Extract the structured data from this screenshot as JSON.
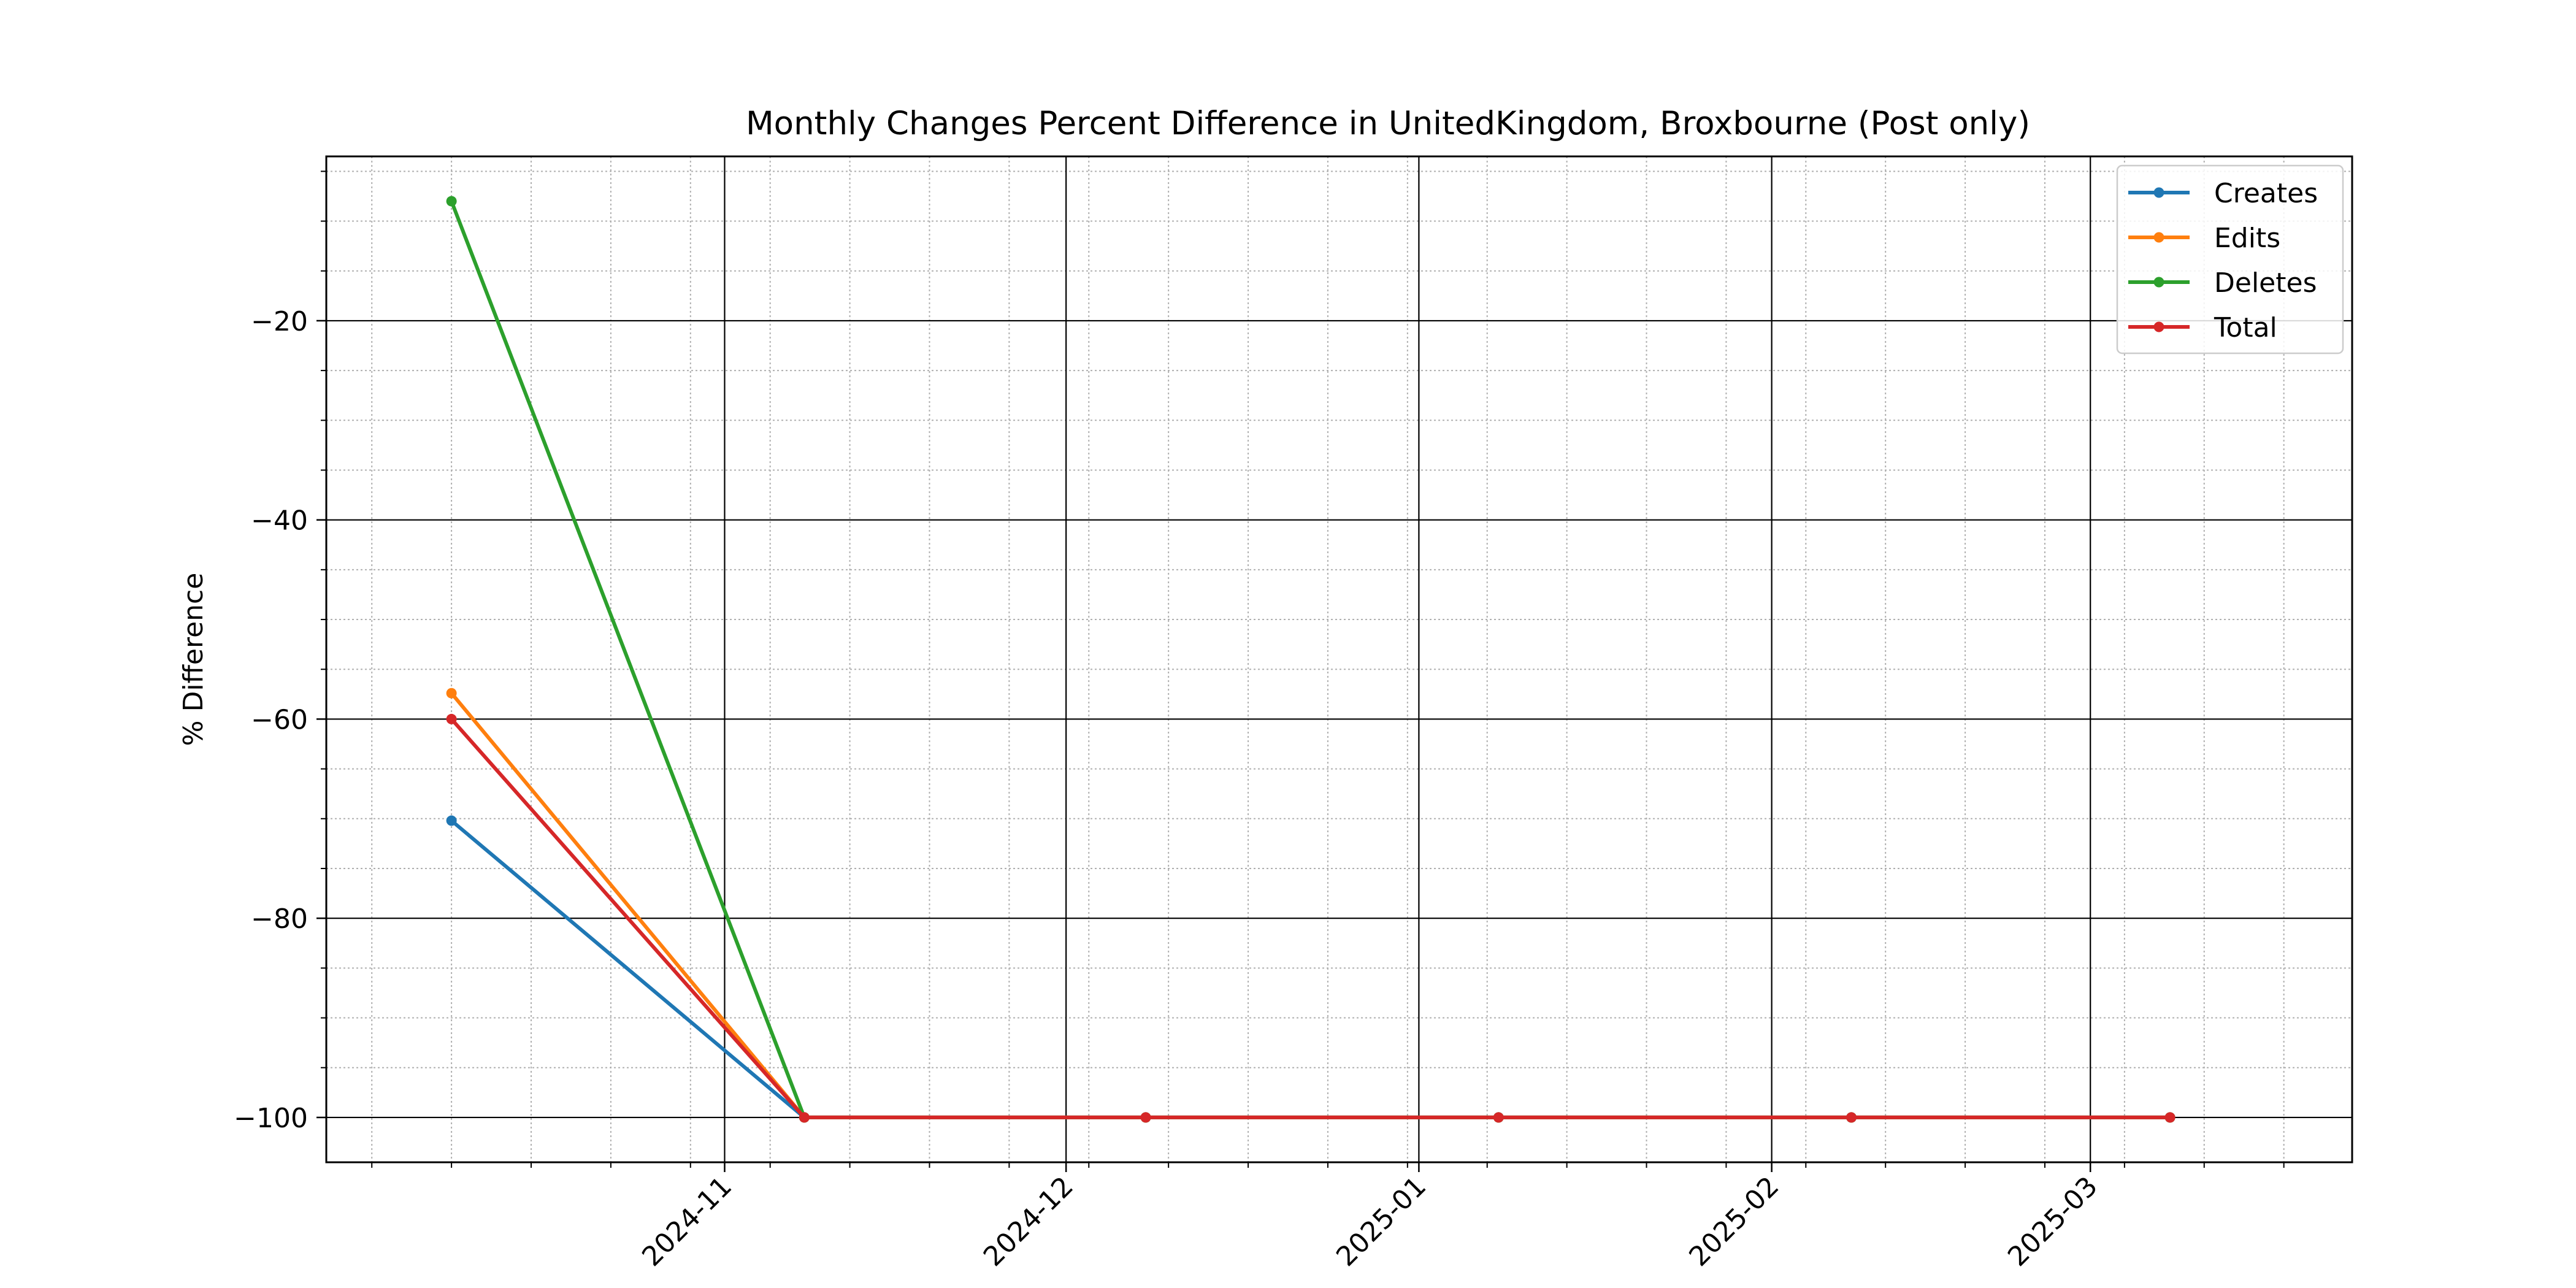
{
  "chart_data": {
    "type": "line",
    "title": "Monthly Changes Percent Difference in UnitedKingdom, Broxbourne (Post only)",
    "xlabel": "",
    "ylabel": "% Difference",
    "x": [
      "2024-10-08",
      "2024-11-08",
      "2024-12-08",
      "2025-01-08",
      "2025-02-08",
      "2025-03-08"
    ],
    "x_ticks": [
      "2024-11",
      "2024-12",
      "2025-01",
      "2025-02",
      "2025-03"
    ],
    "x_tick_dates": [
      "2024-11-01",
      "2024-12-01",
      "2025-01-01",
      "2025-02-01",
      "2025-03-01"
    ],
    "xlim": [
      "2024-09-27",
      "2025-03-24"
    ],
    "ylim": [
      -104.5,
      -3.5
    ],
    "y_ticks": [
      -20,
      -40,
      -60,
      -80,
      -100
    ],
    "grid": true,
    "legend_position": "top-right",
    "series": [
      {
        "name": "Creates",
        "color": "#1f77b4",
        "values": [
          -70.2,
          -100,
          -100,
          -100,
          -100,
          -100
        ]
      },
      {
        "name": "Edits",
        "color": "#ff7f0e",
        "values": [
          -57.4,
          -100,
          -100,
          -100,
          -100,
          -100
        ]
      },
      {
        "name": "Deletes",
        "color": "#2ca02c",
        "values": [
          -8.0,
          -100,
          -100,
          -100,
          -100,
          -100
        ]
      },
      {
        "name": "Total",
        "color": "#d62728",
        "values": [
          -60.0,
          -100,
          -100,
          -100,
          -100,
          -100
        ]
      }
    ]
  }
}
